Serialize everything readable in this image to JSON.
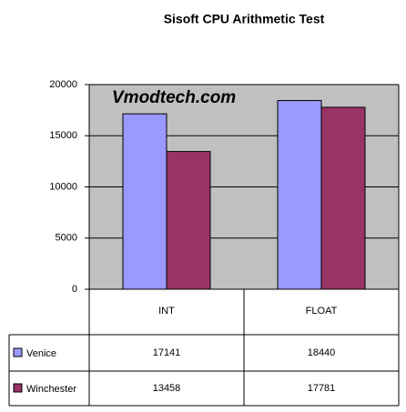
{
  "chart_data": {
    "type": "bar",
    "title": "Sisoft CPU Arithmetic Test",
    "annotation": "Vmodtech.com",
    "categories": [
      "INT",
      "FLOAT"
    ],
    "series": [
      {
        "name": "Venice",
        "color": "#9999ff",
        "values": [
          17141,
          18440
        ]
      },
      {
        "name": "Winchester",
        "color": "#993366",
        "values": [
          13458,
          17781
        ]
      }
    ],
    "ylim": [
      0,
      20000
    ],
    "yticks": [
      0,
      5000,
      10000,
      15000,
      20000
    ],
    "grid": true,
    "data_table": true
  }
}
